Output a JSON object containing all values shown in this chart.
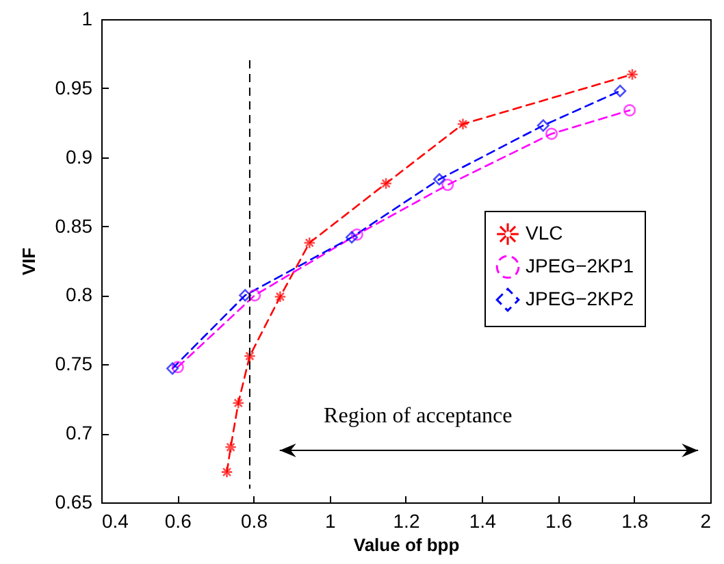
{
  "chart_data": {
    "type": "line",
    "xlabel": "Value of bpp",
    "ylabel": "VIF",
    "xlim": [
      0.4,
      2
    ],
    "xticks": [
      0.4,
      0.6,
      0.8,
      1,
      1.2,
      1.4,
      1.6,
      1.8,
      2
    ],
    "ylim": [
      0.65,
      1
    ],
    "yticks": [
      0.65,
      0.7,
      0.75,
      0.8,
      0.85,
      0.9,
      0.95,
      1
    ],
    "grid": false,
    "legend": "right",
    "line_style": "dashed",
    "series": [
      {
        "name": "VLC",
        "color": "#ff0000",
        "marker": "cross",
        "x": [
          0.73,
          0.74,
          0.76,
          0.79,
          0.87,
          0.947,
          1.148,
          1.35,
          1.795
        ],
        "values": [
          0.672,
          0.69,
          0.722,
          0.756,
          0.799,
          0.838,
          0.881,
          0.924,
          0.96
        ]
      },
      {
        "name": "JPEG−2KP1",
        "color": "#ff00ff",
        "marker": "circle",
        "x": [
          0.601,
          0.803,
          1.072,
          1.31,
          1.583,
          1.788
        ],
        "values": [
          0.748,
          0.8,
          0.844,
          0.88,
          0.917,
          0.934
        ]
      },
      {
        "name": "JPEG−2KP2",
        "color": "#0000ff",
        "marker": "diamond",
        "x": [
          0.587,
          0.778,
          1.058,
          1.288,
          1.561,
          1.763
        ],
        "values": [
          0.747,
          0.8,
          0.842,
          0.884,
          0.923,
          0.948
        ]
      }
    ],
    "ref_lines": [
      {
        "axis": "x",
        "value": 0.79,
        "color": "#000000",
        "line_style": "dashed"
      }
    ],
    "annotations": [
      "Region of acceptance"
    ]
  }
}
